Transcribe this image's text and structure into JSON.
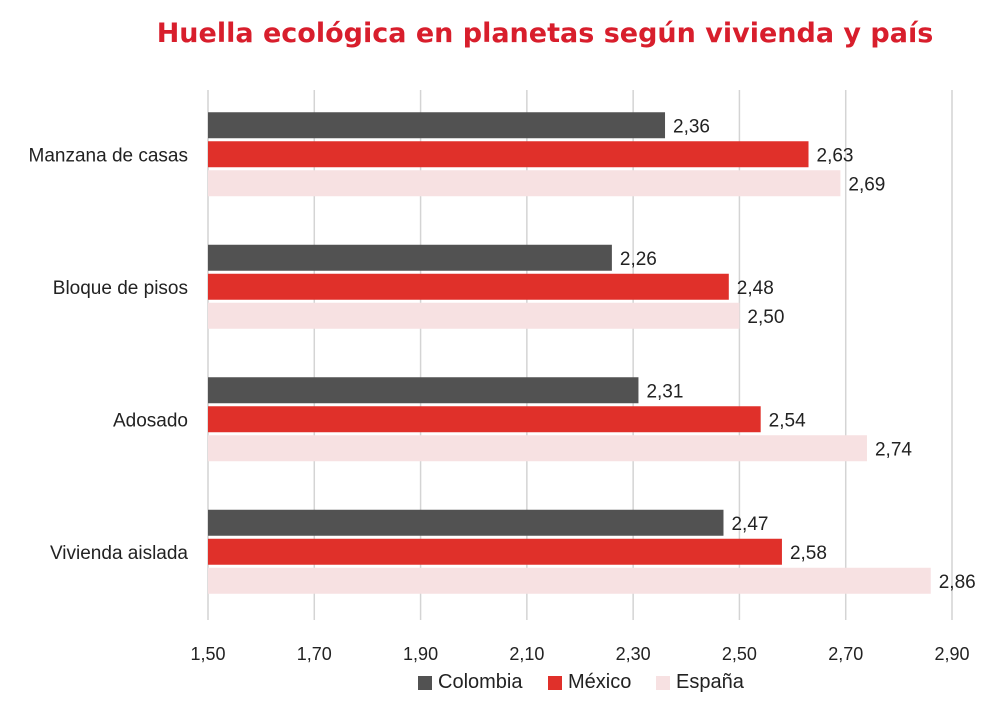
{
  "chart_data": {
    "type": "bar",
    "orientation": "horizontal",
    "title": "Huella ecológica en planetas según vivienda y país",
    "categories": [
      "Manzana de casas",
      "Bloque de pisos",
      "Adosado",
      "Vivienda aislada"
    ],
    "series": [
      {
        "name": "Colombia",
        "color": "#525252",
        "values": [
          2.36,
          2.26,
          2.31,
          2.47
        ],
        "labels": [
          "2,36",
          "2,26",
          "2,31",
          "2,47"
        ]
      },
      {
        "name": "México",
        "color": "#e0302a",
        "values": [
          2.63,
          2.48,
          2.54,
          2.58
        ],
        "labels": [
          "2,63",
          "2,48",
          "2,54",
          "2,58"
        ]
      },
      {
        "name": "España",
        "color": "#f7e1e2",
        "values": [
          2.69,
          2.5,
          2.74,
          2.86
        ],
        "labels": [
          "2,69",
          "2,50",
          "2,74",
          "2,86"
        ]
      }
    ],
    "xlim": [
      1.5,
      2.9
    ],
    "xticks": [
      1.5,
      1.7,
      1.9,
      2.1,
      2.3,
      2.5,
      2.7,
      2.9
    ],
    "xtick_labels": [
      "1,50",
      "1,70",
      "1,90",
      "2,10",
      "2,30",
      "2,50",
      "2,70",
      "2,90"
    ],
    "grid": true,
    "legend": "bottom",
    "title_color": "#d81e2c"
  }
}
